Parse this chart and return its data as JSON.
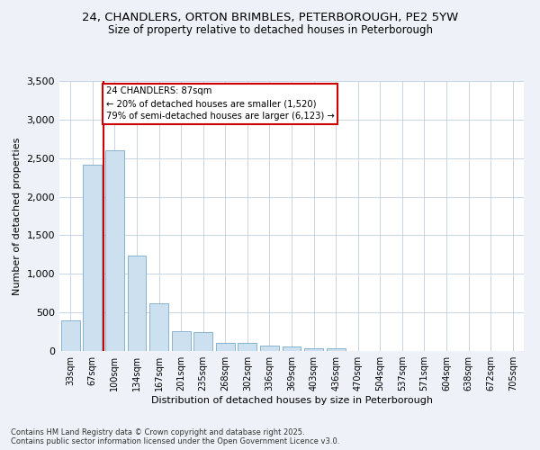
{
  "title_line1": "24, CHANDLERS, ORTON BRIMBLES, PETERBOROUGH, PE2 5YW",
  "title_line2": "Size of property relative to detached houses in Peterborough",
  "xlabel": "Distribution of detached houses by size in Peterborough",
  "ylabel": "Number of detached properties",
  "categories": [
    "33sqm",
    "67sqm",
    "100sqm",
    "134sqm",
    "167sqm",
    "201sqm",
    "235sqm",
    "268sqm",
    "302sqm",
    "336sqm",
    "369sqm",
    "403sqm",
    "436sqm",
    "470sqm",
    "504sqm",
    "537sqm",
    "571sqm",
    "604sqm",
    "638sqm",
    "672sqm",
    "705sqm"
  ],
  "values": [
    400,
    2420,
    2600,
    1240,
    620,
    255,
    250,
    105,
    100,
    65,
    60,
    40,
    35,
    5,
    0,
    0,
    0,
    0,
    0,
    0,
    0
  ],
  "bar_color": "#cce0f0",
  "bar_edge_color": "#7aaac8",
  "vline_x": 1.5,
  "vline_color": "#cc0000",
  "annotation_title": "24 CHANDLERS: 87sqm",
  "annotation_line2": "← 20% of detached houses are smaller (1,520)",
  "annotation_line3": "79% of semi-detached houses are larger (6,123) →",
  "annotation_box_color": "#cc0000",
  "ylim": [
    0,
    3500
  ],
  "yticks": [
    0,
    500,
    1000,
    1500,
    2000,
    2500,
    3000,
    3500
  ],
  "footer_line1": "Contains HM Land Registry data © Crown copyright and database right 2025.",
  "footer_line2": "Contains public sector information licensed under the Open Government Licence v3.0.",
  "bg_color": "#eef2f8",
  "plot_bg_color": "#ffffff",
  "grid_color": "#c8d4e4"
}
